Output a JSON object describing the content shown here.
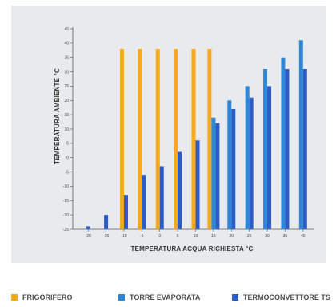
{
  "chart_data": {
    "type": "bar",
    "title": "",
    "xlabel": "TEMPERATURA ACQUA RICHIESTA °C",
    "ylabel": "TEMPERATURA AMBIENTE °C",
    "categories": [
      "-20",
      "-15",
      "-10",
      "-5",
      "0",
      "5",
      "10",
      "15",
      "20",
      "25",
      "30",
      "35",
      "40"
    ],
    "ylim": [
      -25,
      45
    ],
    "yticks": [
      -25,
      -20,
      -15,
      -10,
      -5,
      0,
      5,
      10,
      15,
      20,
      25,
      30,
      35,
      40,
      45
    ],
    "grid": false,
    "legend_position": "bottom",
    "series": [
      {
        "name": "FRIGORIFERO",
        "color": "#f7a81b",
        "values": [
          null,
          null,
          38,
          38,
          38,
          38,
          38,
          38,
          null,
          null,
          null,
          null,
          null
        ]
      },
      {
        "name": "TORRE EVAPORATA",
        "color": "#2e86d6",
        "values": [
          null,
          null,
          null,
          null,
          null,
          null,
          null,
          14,
          20,
          25,
          31,
          35,
          41
        ]
      },
      {
        "name": "TERMOCONVETTORE TS",
        "color": "#2c5cc5",
        "values": [
          -24,
          -20,
          -13,
          -6,
          -3,
          2,
          6,
          12,
          17,
          21,
          25,
          31,
          31
        ]
      }
    ]
  }
}
